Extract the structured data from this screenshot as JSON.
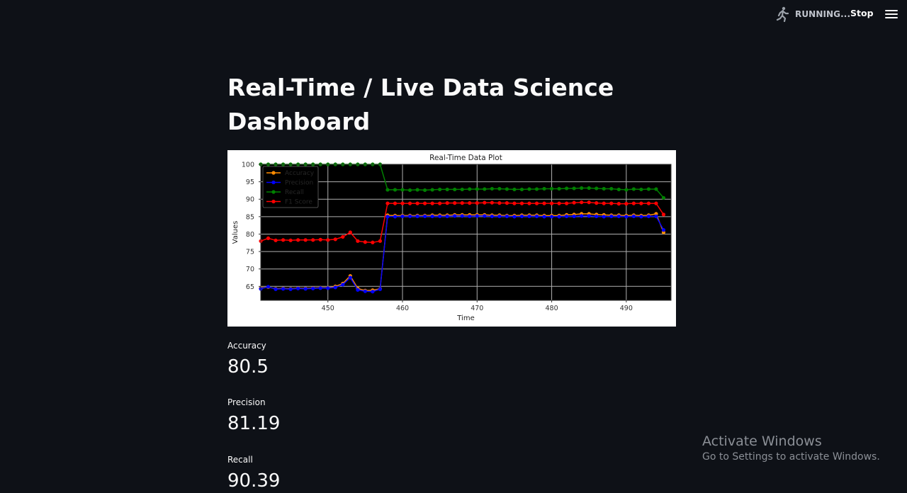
{
  "header": {
    "status_text": "RUNNING...",
    "stop_label": "Stop",
    "icons": {
      "status": "running-man-icon",
      "menu": "hamburger-menu-icon"
    }
  },
  "page": {
    "title": "Real-Time / Live Data Science Dashboard"
  },
  "chart_data": {
    "type": "line",
    "title": "Real-Time Data Plot",
    "xlabel": "Time",
    "ylabel": "Values",
    "xlim": [
      441,
      496
    ],
    "ylim": [
      61,
      100
    ],
    "xticks": [
      450,
      460,
      470,
      480,
      490
    ],
    "yticks": [
      65,
      70,
      75,
      80,
      85,
      90,
      95,
      100
    ],
    "grid": true,
    "background": "#000000",
    "legend": "upper-left",
    "x": [
      441,
      442,
      443,
      444,
      445,
      446,
      447,
      448,
      449,
      450,
      451,
      452,
      453,
      454,
      455,
      456,
      457,
      458,
      459,
      460,
      461,
      462,
      463,
      464,
      465,
      466,
      467,
      468,
      469,
      470,
      471,
      472,
      473,
      474,
      475,
      476,
      477,
      478,
      479,
      480,
      481,
      482,
      483,
      484,
      485,
      486,
      487,
      488,
      489,
      490,
      491,
      492,
      493,
      494,
      495
    ],
    "series": [
      {
        "name": "Accuracy",
        "color": "#ff8c00",
        "values": [
          64.5,
          64.8,
          64.3,
          64.4,
          64.3,
          64.5,
          64.4,
          64.5,
          64.6,
          64.6,
          65.0,
          65.8,
          68.0,
          64.4,
          63.8,
          63.9,
          64.3,
          85.4,
          85.3,
          85.3,
          85.3,
          85.3,
          85.3,
          85.4,
          85.4,
          85.4,
          85.5,
          85.5,
          85.5,
          85.5,
          85.5,
          85.4,
          85.4,
          85.3,
          85.3,
          85.4,
          85.4,
          85.4,
          85.3,
          85.3,
          85.3,
          85.5,
          85.6,
          85.8,
          85.8,
          85.6,
          85.5,
          85.4,
          85.4,
          85.3,
          85.4,
          85.3,
          85.4,
          85.8,
          80.5
        ]
      },
      {
        "name": "Precision",
        "color": "#0000ff",
        "values": [
          64.3,
          64.9,
          64.2,
          64.3,
          64.2,
          64.4,
          64.3,
          64.4,
          64.5,
          64.5,
          64.7,
          65.5,
          67.5,
          64.0,
          63.6,
          63.5,
          64.2,
          85.0,
          85.0,
          85.1,
          85.1,
          85.1,
          85.1,
          85.1,
          85.1,
          85.1,
          85.2,
          85.2,
          85.1,
          85.2,
          85.2,
          85.1,
          85.1,
          85.1,
          85.0,
          85.1,
          85.1,
          85.1,
          85.0,
          85.0,
          85.0,
          85.1,
          85.1,
          85.2,
          85.2,
          85.1,
          85.0,
          85.1,
          85.1,
          85.0,
          85.1,
          85.0,
          85.1,
          85.1,
          81.19
        ]
      },
      {
        "name": "Recall",
        "color": "#008000",
        "values": [
          100,
          100,
          100,
          100,
          100,
          100,
          100,
          100,
          100,
          100,
          100,
          100,
          100,
          100,
          100,
          100,
          100,
          92.7,
          92.7,
          92.7,
          92.6,
          92.7,
          92.6,
          92.7,
          92.8,
          92.8,
          92.8,
          92.8,
          92.9,
          92.9,
          92.9,
          93.0,
          93.0,
          92.9,
          92.8,
          92.8,
          92.9,
          92.9,
          93.0,
          93.0,
          93.0,
          93.1,
          93.1,
          93.2,
          93.2,
          93.1,
          93.0,
          93.0,
          92.8,
          92.7,
          92.9,
          92.8,
          92.9,
          92.9,
          90.39
        ]
      },
      {
        "name": "F1 Score",
        "color": "#ff0000",
        "values": [
          78.0,
          78.8,
          78.2,
          78.3,
          78.2,
          78.3,
          78.3,
          78.3,
          78.4,
          78.3,
          78.5,
          79.2,
          80.5,
          78.0,
          77.7,
          77.6,
          78.0,
          88.8,
          88.8,
          88.8,
          88.8,
          88.8,
          88.8,
          88.8,
          88.8,
          88.9,
          88.9,
          88.9,
          88.9,
          88.9,
          89.0,
          89.0,
          88.9,
          88.9,
          88.8,
          88.8,
          88.8,
          88.8,
          88.8,
          88.8,
          88.8,
          88.8,
          89.0,
          89.1,
          89.1,
          88.9,
          88.8,
          88.8,
          88.7,
          88.7,
          88.8,
          88.8,
          88.8,
          88.8,
          85.6
        ]
      }
    ]
  },
  "metrics": [
    {
      "label": "Accuracy",
      "value": "80.5"
    },
    {
      "label": "Precision",
      "value": "81.19"
    },
    {
      "label": "Recall",
      "value": "90.39"
    }
  ],
  "watermark": {
    "title": "Activate Windows",
    "subtitle": "Go to Settings to activate Windows."
  }
}
